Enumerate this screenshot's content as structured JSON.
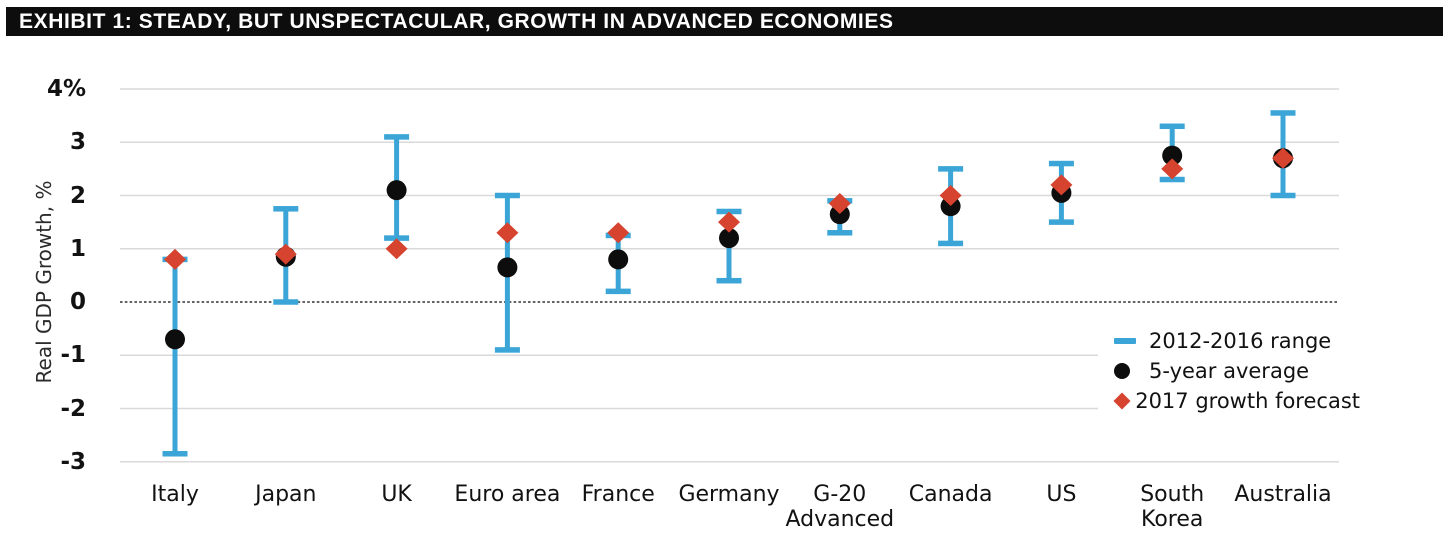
{
  "colors": {
    "title_bar_bg": "#0d0d0d",
    "title_bar_text": "#ffffff",
    "range": "#3aa5d6",
    "average": "#0d0d0d",
    "forecast": "#d6432f",
    "gridline": "#d9d9d9",
    "zero_line": "#4f4f4f",
    "axis_text": "#121212"
  },
  "chart_data": {
    "type": "scatter",
    "title": "EXHIBIT 1: STEADY, BUT UNSPECTACULAR, GROWTH IN ADVANCED ECONOMIES",
    "ylabel": "Real GDP Growth, %",
    "xlabel": "",
    "ylim": [
      -3,
      4
    ],
    "grid": true,
    "legend_position": "middle-right",
    "yticks": [
      {
        "value": 4,
        "label": "4%"
      },
      {
        "value": 3,
        "label": "3"
      },
      {
        "value": 2,
        "label": "2"
      },
      {
        "value": 1,
        "label": "1"
      },
      {
        "value": 0,
        "label": "0"
      },
      {
        "value": -1,
        "label": "-1"
      },
      {
        "value": -2,
        "label": "-2"
      },
      {
        "value": -3,
        "label": "-3"
      }
    ],
    "categories": [
      "Italy",
      "Japan",
      "UK",
      "Euro area",
      "France",
      "Germany",
      "G-20 Advanced",
      "Canada",
      "US",
      "South Korea",
      "Australia"
    ],
    "category_display_lines": [
      [
        "Italy"
      ],
      [
        "Japan"
      ],
      [
        "UK"
      ],
      [
        "Euro area"
      ],
      [
        "France"
      ],
      [
        "Germany"
      ],
      [
        "G-20",
        "Advanced"
      ],
      [
        "Canada"
      ],
      [
        "US"
      ],
      [
        "South",
        "Korea"
      ],
      [
        "Australia"
      ]
    ],
    "series": [
      {
        "name": "2012-2016 range",
        "type": "range",
        "marker": "error-bar",
        "low": [
          -2.85,
          0.0,
          1.2,
          -0.9,
          0.2,
          0.4,
          1.3,
          1.1,
          1.5,
          2.3,
          2.0
        ],
        "high": [
          0.8,
          1.75,
          3.1,
          2.0,
          1.25,
          1.7,
          1.9,
          2.5,
          2.6,
          3.3,
          3.55
        ]
      },
      {
        "name": "5-year average",
        "type": "point",
        "marker": "circle",
        "values": [
          -0.7,
          0.85,
          2.1,
          0.65,
          0.8,
          1.2,
          1.65,
          1.8,
          2.05,
          2.75,
          2.7
        ]
      },
      {
        "name": "2017 growth forecast",
        "type": "point",
        "marker": "diamond",
        "values": [
          0.8,
          0.9,
          1.0,
          1.3,
          1.3,
          1.5,
          1.85,
          2.0,
          2.2,
          2.5,
          2.7
        ]
      }
    ]
  }
}
